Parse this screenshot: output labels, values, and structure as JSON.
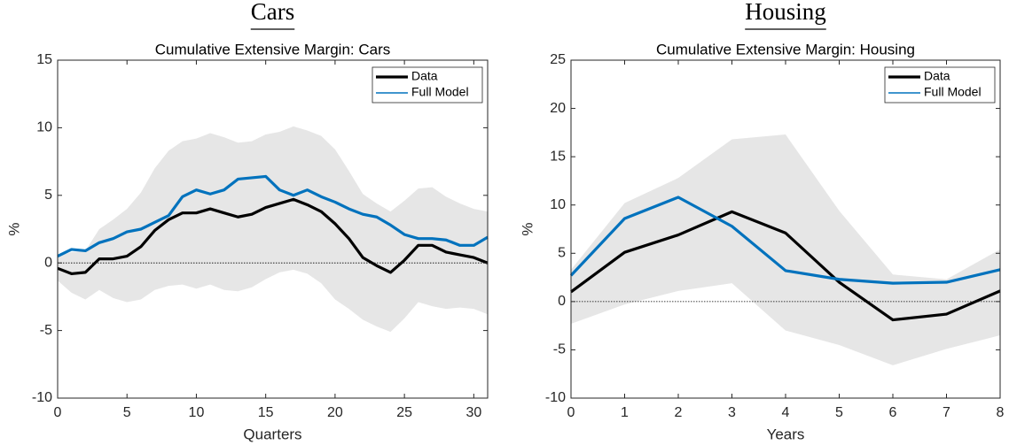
{
  "chart_data": [
    {
      "type": "line",
      "heading": "Cars",
      "title": "Cumulative Extensive Margin: Cars",
      "xlabel": "Quarters",
      "ylabel": "%",
      "x": [
        0,
        1,
        2,
        3,
        4,
        5,
        6,
        7,
        8,
        9,
        10,
        11,
        12,
        13,
        14,
        15,
        16,
        17,
        18,
        19,
        20,
        21,
        22,
        23,
        24,
        25,
        26,
        27,
        28,
        29,
        30,
        31
      ],
      "series": [
        {
          "name": "Data",
          "color": "#000000",
          "values": [
            -0.4,
            -0.8,
            -0.7,
            0.3,
            0.3,
            0.5,
            1.2,
            2.4,
            3.2,
            3.7,
            3.7,
            4.0,
            3.7,
            3.4,
            3.6,
            4.1,
            4.4,
            4.7,
            4.3,
            3.8,
            2.9,
            1.8,
            0.4,
            -0.2,
            -0.7,
            0.2,
            1.3,
            1.3,
            0.8,
            0.6,
            0.4,
            0.0
          ]
        },
        {
          "name": "Full Model",
          "color": "#0072bd",
          "values": [
            0.5,
            1.0,
            0.9,
            1.5,
            1.8,
            2.3,
            2.5,
            3.0,
            3.5,
            4.9,
            5.4,
            5.1,
            5.4,
            6.2,
            6.3,
            6.4,
            5.4,
            5.0,
            5.4,
            4.9,
            4.5,
            4.0,
            3.6,
            3.4,
            2.8,
            2.1,
            1.8,
            1.8,
            1.7,
            1.3,
            1.3,
            1.9
          ]
        }
      ],
      "band": {
        "color": "#e6e6e6",
        "upper": [
          0.5,
          0.8,
          0.9,
          2.5,
          3.2,
          4.0,
          5.2,
          7.0,
          8.3,
          9.0,
          9.2,
          9.6,
          9.3,
          8.9,
          9.0,
          9.5,
          9.7,
          10.1,
          9.8,
          9.4,
          8.4,
          6.8,
          5.1,
          4.4,
          3.8,
          4.6,
          5.5,
          5.6,
          4.9,
          4.4,
          4.0,
          3.8
        ],
        "lower": [
          -1.3,
          -2.2,
          -2.7,
          -2.0,
          -2.6,
          -2.9,
          -2.7,
          -2.0,
          -1.7,
          -1.6,
          -1.9,
          -1.6,
          -2.0,
          -2.1,
          -1.8,
          -1.2,
          -0.7,
          -0.5,
          -0.8,
          -1.5,
          -2.7,
          -3.4,
          -4.2,
          -4.7,
          -5.1,
          -4.1,
          -2.9,
          -3.2,
          -3.4,
          -3.3,
          -3.4,
          -3.8
        ]
      },
      "xlim": [
        0,
        31
      ],
      "xticks": [
        0,
        5,
        10,
        15,
        20,
        25,
        30
      ],
      "ylim": [
        -10,
        15
      ],
      "yticks": [
        -10,
        -5,
        0,
        5,
        10,
        15
      ],
      "legend": "upper right"
    },
    {
      "type": "line",
      "heading": "Housing",
      "title": "Cumulative Extensive Margin: Housing",
      "xlabel": "Years",
      "ylabel": "%",
      "x": [
        0,
        1,
        2,
        3,
        4,
        5,
        6,
        7,
        8
      ],
      "series": [
        {
          "name": "Data",
          "color": "#000000",
          "values": [
            1.0,
            5.1,
            6.9,
            9.3,
            7.1,
            2.0,
            -1.9,
            -1.3,
            1.1
          ]
        },
        {
          "name": "Full Model",
          "color": "#0072bd",
          "values": [
            2.7,
            8.6,
            10.8,
            7.8,
            3.2,
            2.3,
            1.9,
            2.0,
            3.3
          ]
        }
      ],
      "band": {
        "color": "#e6e6e6",
        "upper": [
          3.3,
          10.2,
          12.8,
          16.8,
          17.3,
          9.4,
          2.8,
          2.3,
          5.4
        ],
        "lower": [
          -2.3,
          -0.3,
          1.1,
          1.9,
          -3.0,
          -4.5,
          -6.6,
          -4.9,
          -3.5
        ]
      },
      "xlim": [
        0,
        8
      ],
      "xticks": [
        0,
        1,
        2,
        3,
        4,
        5,
        6,
        7,
        8
      ],
      "ylim": [
        -10,
        25
      ],
      "yticks": [
        -10,
        -5,
        0,
        5,
        10,
        15,
        20,
        25
      ],
      "legend": "upper right"
    }
  ]
}
